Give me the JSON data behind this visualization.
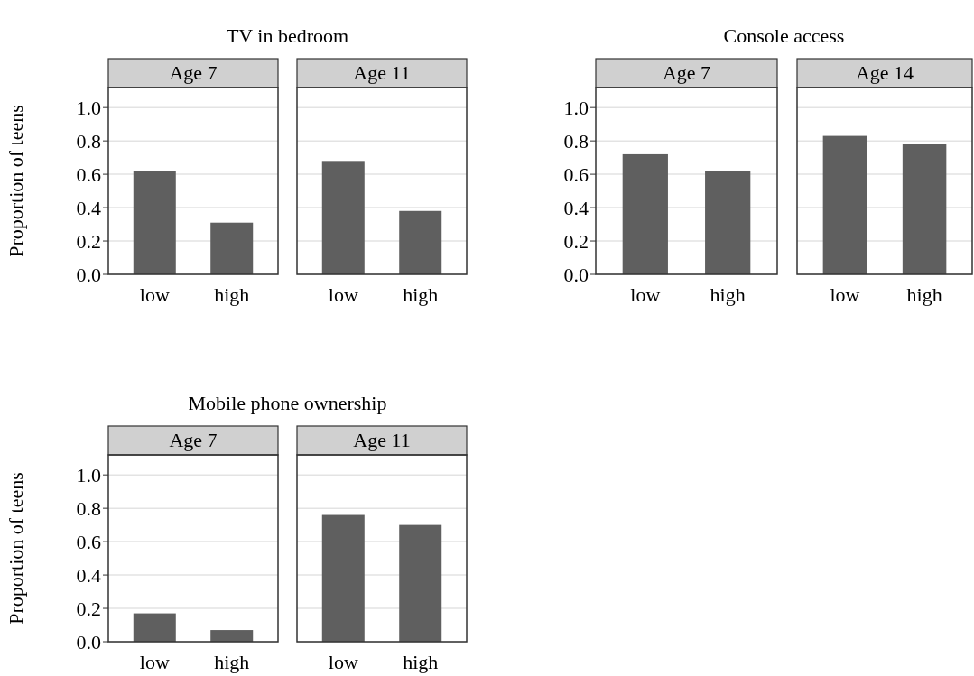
{
  "chart_data": [
    {
      "type": "bar",
      "title": "TV in bedroom",
      "subtitle": "Age 7",
      "ylabel": "Proportion of teens",
      "categories": [
        "low",
        "high"
      ],
      "values": [
        0.62,
        0.31
      ],
      "color": "#5f5f5f",
      "ylim": [
        0,
        1.12
      ],
      "yticks": [
        {
          "value": 0,
          "label": "0.0"
        },
        {
          "value": 0.2,
          "label": "0.2"
        },
        {
          "value": 0.4,
          "label": "0.4"
        },
        {
          "value": 0.6,
          "label": "0.6"
        },
        {
          "value": 0.8,
          "label": "0.8"
        },
        {
          "value": 1,
          "label": "1.0"
        }
      ],
      "grid": "y"
    },
    {
      "type": "bar",
      "subtitle": "Age 11",
      "categories": [
        "low",
        "high"
      ],
      "values": [
        0.68,
        0.38
      ],
      "color": "#5f5f5f",
      "ylim": [
        0,
        1.12
      ],
      "yticks": [
        0,
        0.2,
        0.4,
        0.6,
        0.8,
        1
      ],
      "grid": "y",
      "tick_labels": "x"
    },
    {
      "type": "bar",
      "title": "Console access",
      "subtitle": "Age 7",
      "categories": [
        "low",
        "high"
      ],
      "values": [
        0.72,
        0.62
      ],
      "color": "#5f5f5f",
      "ylim": [
        0,
        1.12
      ],
      "yticks": [
        {
          "value": 0,
          "label": "0.0"
        },
        {
          "value": 0.2,
          "label": "0.2"
        },
        {
          "value": 0.4,
          "label": "0.4"
        },
        {
          "value": 0.6,
          "label": "0.6"
        },
        {
          "value": 0.8,
          "label": "0.8"
        },
        {
          "value": 1,
          "label": "1.0"
        }
      ],
      "grid": "y"
    },
    {
      "type": "bar",
      "subtitle": "Age 14",
      "categories": [
        "low",
        "high"
      ],
      "values": [
        0.83,
        0.78
      ],
      "color": "#5f5f5f",
      "ylim": [
        0,
        1.12
      ],
      "yticks": [
        0,
        0.2,
        0.4,
        0.6,
        0.8,
        1
      ],
      "grid": "y",
      "tick_labels": "x"
    },
    {
      "type": "bar",
      "title": "Mobile phone ownership",
      "subtitle": "Age 7",
      "ylabel": "Proportion of teens",
      "categories": [
        "low",
        "high"
      ],
      "values": [
        0.17,
        0.07
      ],
      "color": "#5f5f5f",
      "ylim": [
        0,
        1.12
      ],
      "yticks": [
        {
          "value": 0,
          "label": "0.0"
        },
        {
          "value": 0.2,
          "label": "0.2"
        },
        {
          "value": 0.4,
          "label": "0.4"
        },
        {
          "value": 0.6,
          "label": "0.6"
        },
        {
          "value": 0.8,
          "label": "0.8"
        },
        {
          "value": 1,
          "label": "1.0"
        }
      ],
      "grid": "y"
    },
    {
      "type": "bar",
      "subtitle": "Age 11",
      "categories": [
        "low",
        "high"
      ],
      "values": [
        0.76,
        0.7
      ],
      "color": "#5f5f5f",
      "ylim": [
        0,
        1.12
      ],
      "yticks": [
        0,
        0.2,
        0.4,
        0.6,
        0.8,
        1
      ],
      "grid": "y",
      "tick_labels": "x"
    }
  ]
}
